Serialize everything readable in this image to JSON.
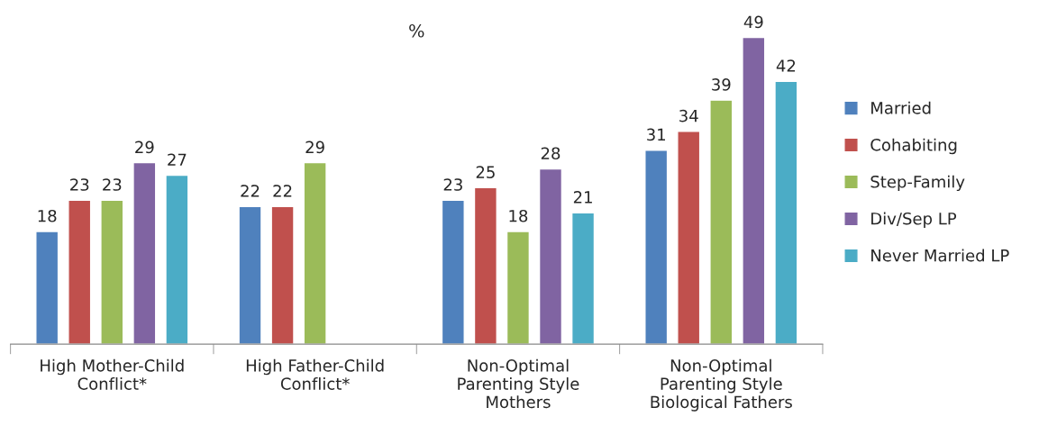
{
  "chart_data": {
    "type": "bar",
    "title": "%",
    "categories": [
      "High Mother-Child\nConflict*",
      "High Father-Child\nConflict*",
      "Non-Optimal\nParenting Style\nMothers",
      "Non-Optimal\nParenting Style\nBiological Fathers"
    ],
    "series": [
      {
        "name": "Married",
        "color": "#4f81bd",
        "values": [
          18,
          22,
          23,
          31
        ]
      },
      {
        "name": "Cohabiting",
        "color": "#c0504d",
        "values": [
          23,
          22,
          25,
          34
        ]
      },
      {
        "name": "Step-Family",
        "color": "#9bbb59",
        "values": [
          23,
          29,
          18,
          39
        ]
      },
      {
        "name": "Div/Sep LP",
        "color": "#8064a2",
        "values": [
          29,
          null,
          28,
          49
        ]
      },
      {
        "name": "Never Married LP",
        "color": "#4bacc6",
        "values": [
          27,
          null,
          21,
          42
        ]
      }
    ],
    "data_labels": true,
    "legend": "right",
    "grid": false
  }
}
